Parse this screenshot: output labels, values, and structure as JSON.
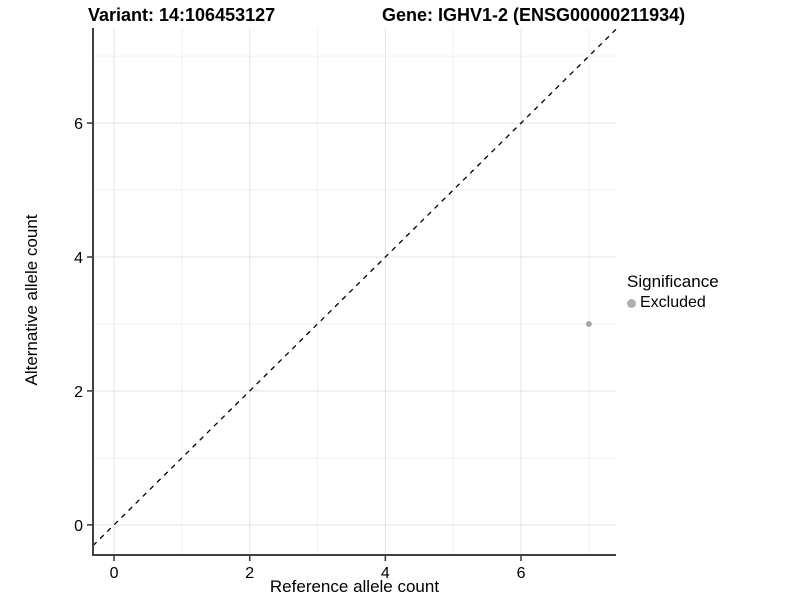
{
  "titles": {
    "variant": "Variant: 14:106453127",
    "gene": "Gene: IGHV1-2 (ENSG00000211934)"
  },
  "legend": {
    "title": "Significance",
    "items": [
      {
        "label": "Excluded",
        "color": "#b0b0b0"
      }
    ]
  },
  "chart_data": {
    "type": "scatter",
    "title": "Variant: 14:106453127   Gene: IGHV1-2 (ENSG00000211934)",
    "xlabel": "Reference allele count",
    "ylabel": "Alternative allele count",
    "x_ticks": [
      0,
      2,
      4,
      6
    ],
    "y_ticks": [
      0,
      2,
      4,
      6
    ],
    "x_minor_ticks": [
      1,
      3,
      5,
      7
    ],
    "y_minor_ticks": [
      1,
      3,
      5,
      7
    ],
    "xlim": [
      -0.31,
      7.4
    ],
    "ylim": [
      -0.45,
      7.42
    ],
    "grid": true,
    "legend_position": "right",
    "series": [
      {
        "name": "Excluded",
        "color": "#b0b0b0",
        "points": [
          {
            "x": 7,
            "y": 3
          }
        ]
      }
    ],
    "reference_line": {
      "type": "identity",
      "slope": 1,
      "intercept": 0,
      "style": "dashed",
      "color": "#000000"
    }
  },
  "colors": {
    "background": "#ffffff",
    "grid_major": "#e4e4e4",
    "grid_minor": "#f2f2f2",
    "axis_line": "#404040",
    "tick_mark": "#333333",
    "tick_label": "#000000",
    "point": "#a8a8a8"
  }
}
